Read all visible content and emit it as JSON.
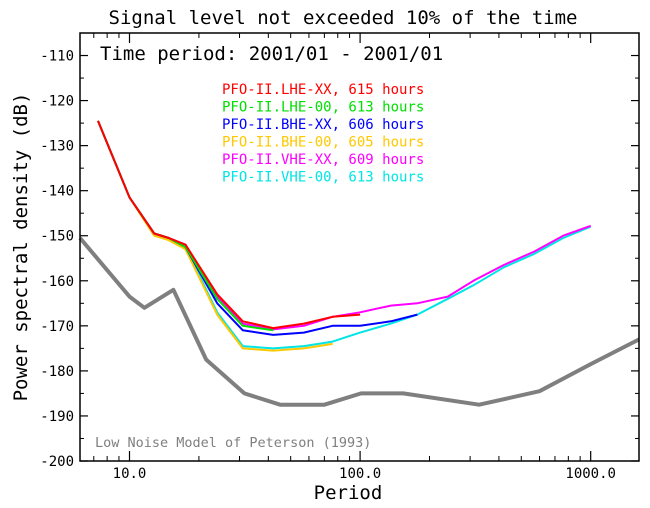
{
  "chart_data": {
    "type": "line",
    "title": "Signal level not exceeded 10% of the time",
    "subtitle": "Time period: 2001/01 - 2001/01",
    "xlabel": "Period",
    "ylabel": "Power spectral density (dB)",
    "x_scale": "log",
    "xlim": [
      6.1,
      1620
    ],
    "ylim": [
      -200,
      -105
    ],
    "x_ticks": [
      10,
      100,
      1000
    ],
    "x_tick_labels": [
      "10.0",
      "100.0",
      "1000.0"
    ],
    "y_ticks": [
      -200,
      -190,
      -180,
      -170,
      -160,
      -150,
      -140,
      -130,
      -120,
      -110
    ],
    "y_tick_labels": [
      "-200",
      "-190",
      "-180",
      "-170",
      "-160",
      "-150",
      "-140",
      "-130",
      "-120",
      "-110"
    ],
    "legend_position": "top-center",
    "annotation": "Low Noise Model of Peterson (1993)",
    "series": [
      {
        "name": "PFO-II.VHE-00, 613 hours",
        "color": "#00e5e5",
        "x": [
          7.3,
          10,
          12.8,
          14.8,
          17.5,
          24,
          31,
          42,
          57,
          76,
          100,
          136,
          177,
          240,
          310,
          420,
          570,
          760,
          1000
        ],
        "y": [
          -124.5,
          -141.5,
          -149.5,
          -150.5,
          -152.5,
          -167,
          -174.5,
          -175,
          -174.5,
          -173.5,
          -171.5,
          -169.5,
          -167.5,
          -164,
          -161,
          -157,
          -154,
          -150.5,
          -148
        ]
      },
      {
        "name": "PFO-II.VHE-XX, 609 hours",
        "color": "#ff00ff",
        "x": [
          7.3,
          10,
          12.8,
          14.8,
          17.5,
          24,
          31,
          42,
          57,
          76,
          100,
          136,
          177,
          240,
          310,
          420,
          570,
          760,
          1000
        ],
        "y": [
          -124.5,
          -141.5,
          -149.5,
          -150.5,
          -152,
          -163.5,
          -169.5,
          -170.8,
          -170,
          -168,
          -167,
          -165.5,
          -165,
          -163.5,
          -160,
          -156.5,
          -153.5,
          -150,
          -147.8
        ]
      },
      {
        "name": "PFO-II.BHE-00, 605 hours",
        "color": "#ffc800",
        "x": [
          7.3,
          10,
          12.8,
          14.8,
          17.5,
          24,
          31,
          42,
          57,
          76
        ],
        "y": [
          -124.5,
          -141.5,
          -150,
          -151,
          -153,
          -167.5,
          -175,
          -175.5,
          -175,
          -174
        ]
      },
      {
        "name": "PFO-II.BHE-XX, 606 hours",
        "color": "#0000ff",
        "x": [
          7.3,
          10,
          12.8,
          14.8,
          17.5,
          24,
          31,
          42,
          57,
          76,
          100,
          136,
          177
        ],
        "y": [
          -124.5,
          -141.5,
          -149.5,
          -150.5,
          -152.5,
          -165,
          -171,
          -172,
          -171.5,
          -170,
          -170,
          -169,
          -167.5
        ]
      },
      {
        "name": "PFO-II.LHE-00, 613 hours",
        "color": "#00e000",
        "x": [
          7.3,
          10,
          12.8,
          14.8,
          17.5,
          24,
          31,
          42
        ],
        "y": [
          -124.5,
          -141.5,
          -149.5,
          -150.5,
          -152.5,
          -164,
          -170,
          -171
        ]
      },
      {
        "name": "PFO-II.LHE-XX, 615 hours",
        "color": "#ff0000",
        "x": [
          7.3,
          10,
          12.8,
          14.8,
          17.5,
          24,
          31,
          42,
          57,
          76,
          100
        ],
        "y": [
          -124.5,
          -141.5,
          -149.5,
          -150.5,
          -152,
          -163,
          -169,
          -170.5,
          -169.5,
          -168,
          -167.5
        ]
      },
      {
        "color": "#7f7f7f",
        "x": [
          6.1,
          10,
          11.6,
          15.5,
          21.5,
          31.5,
          45,
          70,
          101,
          154,
          328,
          600,
          1000,
          1620
        ],
        "y": [
          -150.5,
          -163.5,
          -166,
          -162,
          -177.5,
          -185,
          -187.5,
          -187.5,
          -185,
          -185,
          -187.5,
          -184.5,
          -178.5,
          -173
        ]
      }
    ]
  }
}
